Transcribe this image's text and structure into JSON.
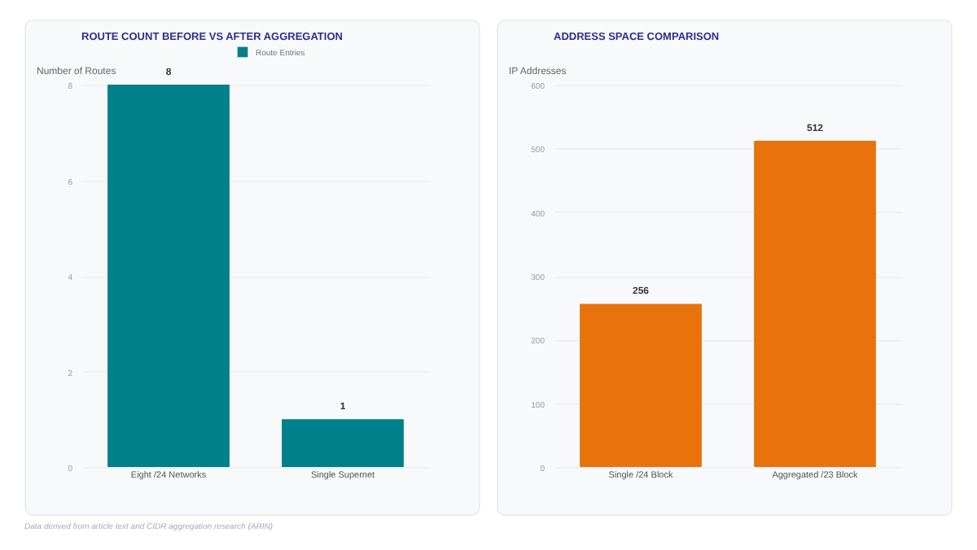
{
  "chart_data": [
    {
      "type": "bar",
      "title": "ROUTE COUNT BEFORE VS AFTER AGGREGATION",
      "ylabel": "Number of Routes",
      "categories": [
        "Eight /24 Networks",
        "Single Supernet"
      ],
      "series": [
        {
          "name": "Route Entries",
          "color": "#00808a",
          "values": [
            8,
            1
          ]
        }
      ],
      "ylim": [
        0,
        8
      ],
      "yticks": [
        0,
        2,
        4,
        6,
        8
      ],
      "grid": "y",
      "legend": "top",
      "data_labels": true,
      "annotations": [
        "Data derived from article text and CIDR aggregation research (ARIN)"
      ]
    },
    {
      "type": "bar",
      "title": "ADDRESS SPACE COMPARISON",
      "ylabel": "IP Addresses",
      "categories": [
        "Single /24 Block",
        "Aggregated /23 Block"
      ],
      "series": [
        {
          "color": "#e8720c",
          "values": [
            256,
            512
          ]
        }
      ],
      "ylim": [
        0,
        600
      ],
      "yticks": [
        0,
        100,
        200,
        300,
        400,
        500,
        600
      ],
      "grid": "y",
      "data_labels": true
    }
  ]
}
